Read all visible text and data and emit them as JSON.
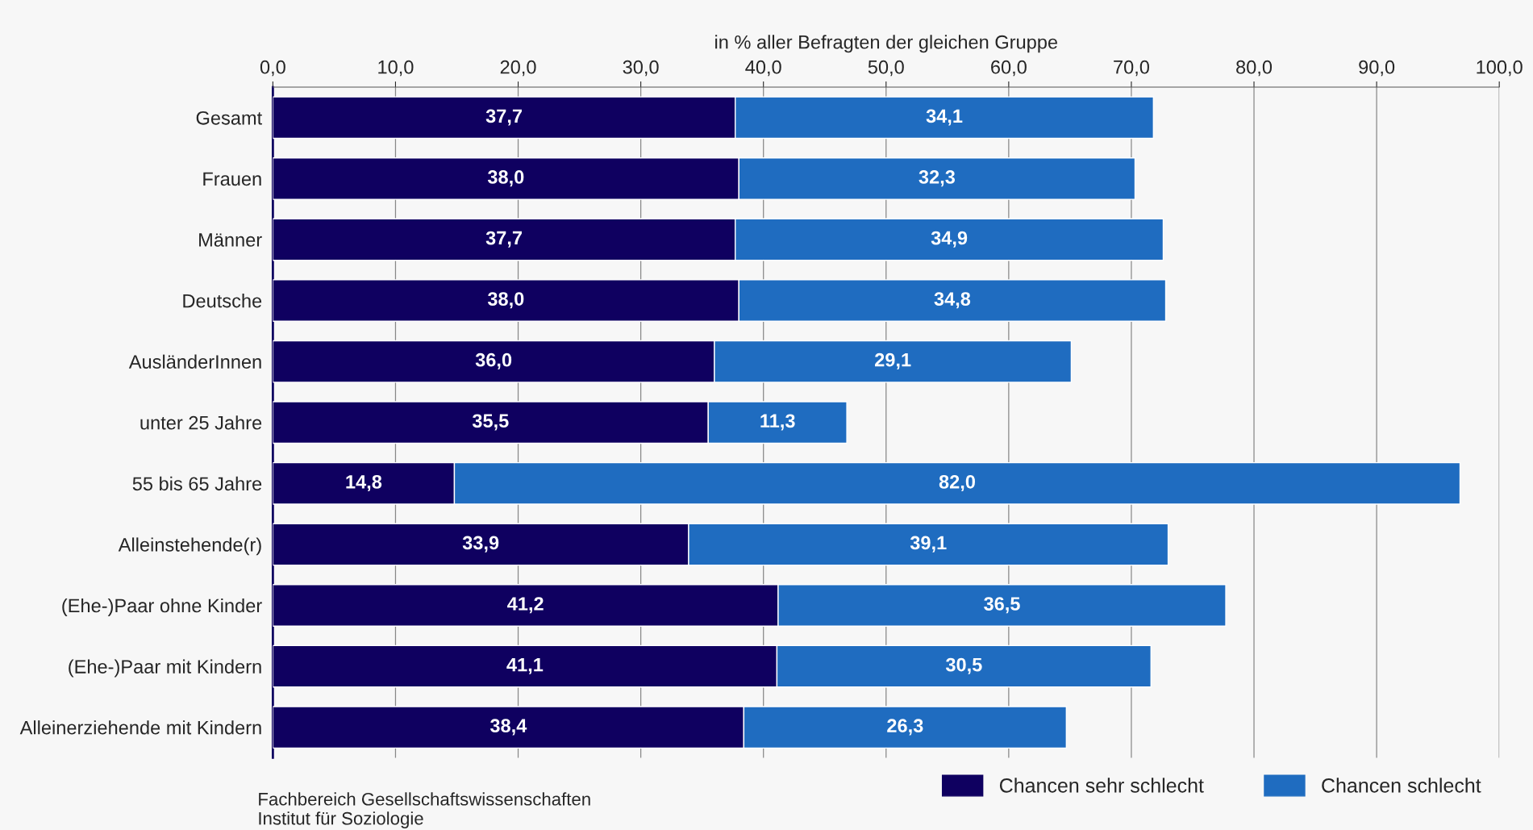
{
  "chart_data": {
    "type": "bar",
    "orientation": "horizontal",
    "stacked": true,
    "xlabel": "in % aller Befragten der gleichen Gruppe",
    "categories": [
      "Gesamt",
      "Frauen",
      "Männer",
      "Deutsche",
      "AusländerInnen",
      "unter 25 Jahre",
      "55 bis 65 Jahre",
      "Alleinstehende(r)",
      "(Ehe-)Paar ohne Kinder",
      "(Ehe-)Paar mit Kindern",
      "Alleinerziehende mit Kindern"
    ],
    "series": [
      {
        "name": "Chancen sehr schlecht",
        "color": "#0f0060",
        "values": [
          37.7,
          38.0,
          37.7,
          38.0,
          36.0,
          35.5,
          14.8,
          33.9,
          41.2,
          41.1,
          38.4
        ],
        "value_labels": [
          "37,7",
          "38,0",
          "37,7",
          "38,0",
          "36,0",
          "35,5",
          "14,8",
          "33,9",
          "41,2",
          "41,1",
          "38,4"
        ]
      },
      {
        "name": "Chancen schlecht",
        "color": "#1f6cc0",
        "values": [
          34.1,
          32.3,
          34.9,
          34.8,
          29.1,
          11.3,
          82.0,
          39.1,
          36.5,
          30.5,
          26.3
        ],
        "value_labels": [
          "34,1",
          "32,3",
          "34,9",
          "34,8",
          "29,1",
          "11,3",
          "82,0",
          "39,1",
          "36,5",
          "30,5",
          "26,3"
        ]
      }
    ],
    "xlim": [
      0,
      100
    ],
    "xticks": [
      {
        "value": 0,
        "label": "0,0"
      },
      {
        "value": 10,
        "label": "10,0"
      },
      {
        "value": 20,
        "label": "20,0"
      },
      {
        "value": 30,
        "label": "30,0"
      },
      {
        "value": 40,
        "label": "40,0"
      },
      {
        "value": 50,
        "label": "50,0"
      },
      {
        "value": 60,
        "label": "60,0"
      },
      {
        "value": 70,
        "label": "70,0"
      },
      {
        "value": 80,
        "label": "80,0"
      },
      {
        "value": 90,
        "label": "90,0"
      },
      {
        "value": 100,
        "label": "100,0"
      }
    ],
    "grid": "x",
    "legend": "bottom right",
    "annotations": [
      "Fachbereich Gesellschaftswissenschaften\nInstitut für Soziologie"
    ]
  }
}
